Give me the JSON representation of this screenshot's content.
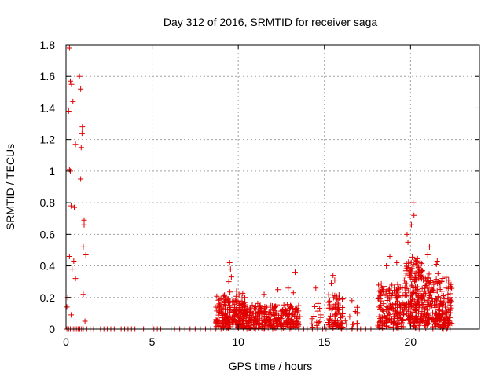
{
  "chart_data": {
    "type": "scatter",
    "title": "Day 312 of 2016, SRMTID for receiver saga",
    "xlabel": "GPS time / hours",
    "ylabel": "SRMTID / TECUs",
    "xlim": [
      0,
      24
    ],
    "ylim": [
      0,
      1.8
    ],
    "xticks": [
      0,
      5,
      10,
      15,
      20
    ],
    "yticks": [
      0,
      0.2,
      0.4,
      0.6,
      0.8,
      1,
      1.2,
      1.4,
      1.6,
      1.8
    ],
    "xtick_labels": [
      "0",
      "5",
      "10",
      "15",
      "20"
    ],
    "ytick_labels": [
      "0",
      "0.2",
      "0.4",
      "0.6",
      "0.8",
      "1",
      "1.2",
      "1.4",
      "1.6",
      "1.8"
    ],
    "grid": true,
    "marker": "+",
    "color": "#e00000",
    "series": [
      {
        "name": "SRMTID",
        "points": [
          [
            0.2,
            1.78
          ],
          [
            0.25,
            1.57
          ],
          [
            0.32,
            1.55
          ],
          [
            0.15,
            1.38
          ],
          [
            0.4,
            1.44
          ],
          [
            0.78,
            1.6
          ],
          [
            0.85,
            1.52
          ],
          [
            0.95,
            1.28
          ],
          [
            0.93,
            1.24
          ],
          [
            0.88,
            1.15
          ],
          [
            0.55,
            1.17
          ],
          [
            0.2,
            1.01
          ],
          [
            0.25,
            1.0
          ],
          [
            0.85,
            0.95
          ],
          [
            0.3,
            0.78
          ],
          [
            0.48,
            0.77
          ],
          [
            1.05,
            0.69
          ],
          [
            1.05,
            0.66
          ],
          [
            1.0,
            0.52
          ],
          [
            1.15,
            0.47
          ],
          [
            0.2,
            0.46
          ],
          [
            0.45,
            0.43
          ],
          [
            0.35,
            0.38
          ],
          [
            0.55,
            0.32
          ],
          [
            1.0,
            0.22
          ],
          [
            0.1,
            0.2
          ],
          [
            0.05,
            0.14
          ],
          [
            0.3,
            0.09
          ],
          [
            1.1,
            0.05
          ],
          [
            0.05,
            0
          ],
          [
            0.15,
            0
          ],
          [
            0.25,
            0
          ],
          [
            0.35,
            0
          ],
          [
            0.45,
            0
          ],
          [
            0.6,
            0
          ],
          [
            0.7,
            0
          ],
          [
            0.8,
            0
          ],
          [
            0.9,
            0
          ],
          [
            1.0,
            0
          ],
          [
            1.2,
            0
          ],
          [
            1.4,
            0
          ],
          [
            1.6,
            0
          ],
          [
            1.8,
            0
          ],
          [
            2.0,
            0
          ],
          [
            2.2,
            0
          ],
          [
            2.4,
            0
          ],
          [
            2.6,
            0
          ],
          [
            2.8,
            0
          ],
          [
            3.2,
            0
          ],
          [
            3.4,
            0
          ],
          [
            3.6,
            0
          ],
          [
            3.8,
            0
          ],
          [
            4.0,
            0
          ],
          [
            4.5,
            0
          ],
          [
            5.1,
            0
          ],
          [
            5.3,
            0
          ],
          [
            5.5,
            0
          ],
          [
            6.1,
            0
          ],
          [
            6.3,
            0
          ],
          [
            6.6,
            0
          ],
          [
            6.9,
            0
          ],
          [
            7.2,
            0
          ],
          [
            7.5,
            0
          ],
          [
            7.8,
            0
          ],
          [
            8.1,
            0
          ],
          [
            8.4,
            0
          ],
          [
            8.7,
            0
          ]
        ]
      }
    ],
    "clusters": [
      {
        "x_start": 8.7,
        "x_end": 10.4,
        "count": 220,
        "base": 0.04,
        "spread": 0.2,
        "spikes": [
          [
            9.5,
            0.42
          ],
          [
            9.55,
            0.38
          ],
          [
            9.6,
            0.33
          ],
          [
            9.45,
            0.3
          ],
          [
            9.9,
            0.24
          ]
        ]
      },
      {
        "x_start": 10.3,
        "x_end": 13.6,
        "count": 300,
        "base": 0.03,
        "spread": 0.14,
        "spikes": [
          [
            13.3,
            0.36
          ],
          [
            12.9,
            0.26
          ],
          [
            13.2,
            0.23
          ],
          [
            11.5,
            0.22
          ],
          [
            12.3,
            0.25
          ]
        ]
      },
      {
        "x_start": 14.2,
        "x_end": 14.8,
        "count": 15,
        "base": 0.05,
        "spread": 0.14,
        "spikes": [
          [
            14.5,
            0.26
          ]
        ]
      },
      {
        "x_start": 15.2,
        "x_end": 16.1,
        "count": 80,
        "base": 0.03,
        "spread": 0.2,
        "spikes": [
          [
            15.5,
            0.34
          ],
          [
            15.6,
            0.31
          ],
          [
            15.4,
            0.29
          ]
        ]
      },
      {
        "x_start": 16.2,
        "x_end": 17.0,
        "count": 12,
        "base": 0.04,
        "spread": 0.12,
        "spikes": [
          [
            16.6,
            0.18
          ]
        ]
      },
      {
        "x_start": 18.1,
        "x_end": 19.6,
        "count": 170,
        "base": 0.05,
        "spread": 0.25,
        "spikes": [
          [
            18.8,
            0.46
          ],
          [
            18.6,
            0.4
          ],
          [
            19.2,
            0.42
          ]
        ]
      },
      {
        "x_start": 19.6,
        "x_end": 20.7,
        "count": 200,
        "base": 0.08,
        "spread": 0.4,
        "spikes": [
          [
            20.15,
            0.8
          ],
          [
            20.2,
            0.72
          ],
          [
            20.05,
            0.66
          ],
          [
            19.8,
            0.6
          ],
          [
            19.85,
            0.55
          ]
        ]
      },
      {
        "x_start": 20.7,
        "x_end": 22.4,
        "count": 230,
        "base": 0.06,
        "spread": 0.3,
        "spikes": [
          [
            21.1,
            0.52
          ],
          [
            21.0,
            0.47
          ],
          [
            21.55,
            0.43
          ],
          [
            21.5,
            0.41
          ]
        ]
      }
    ],
    "zero_rows": [
      [
        9.0,
        9.3,
        9.7,
        10.5,
        11.0,
        11.5,
        12.0,
        12.5,
        13.0,
        13.5,
        13.8,
        14.0,
        14.3,
        14.6,
        14.9,
        15.1,
        16.0,
        16.3,
        16.6,
        16.9,
        17.1,
        17.4,
        17.7,
        18.0,
        19.0,
        19.5,
        20.5,
        21.3,
        21.9,
        22.1,
        22.3
      ]
    ]
  }
}
